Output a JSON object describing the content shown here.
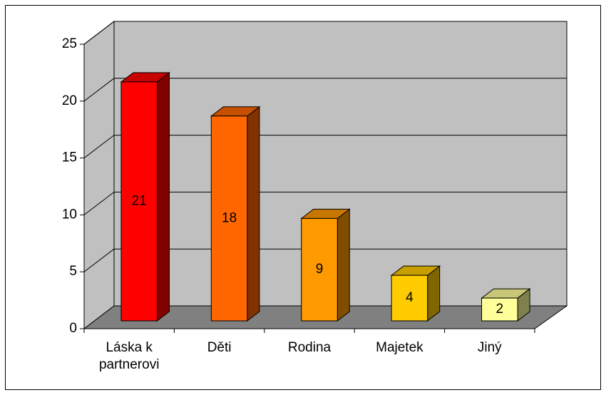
{
  "chart_data": {
    "type": "bar3d",
    "categories": [
      "Láska k partnerovi",
      "Děti",
      "Rodina",
      "Majetek",
      "Jiný"
    ],
    "values": [
      21,
      18,
      9,
      4,
      2
    ],
    "colors": [
      "#ff0000",
      "#ff6600",
      "#ff9900",
      "#ffcc00",
      "#ffff99"
    ],
    "ylim": [
      0,
      25
    ],
    "yticks": [
      0,
      5,
      10,
      15,
      20,
      25
    ],
    "grid": true
  }
}
